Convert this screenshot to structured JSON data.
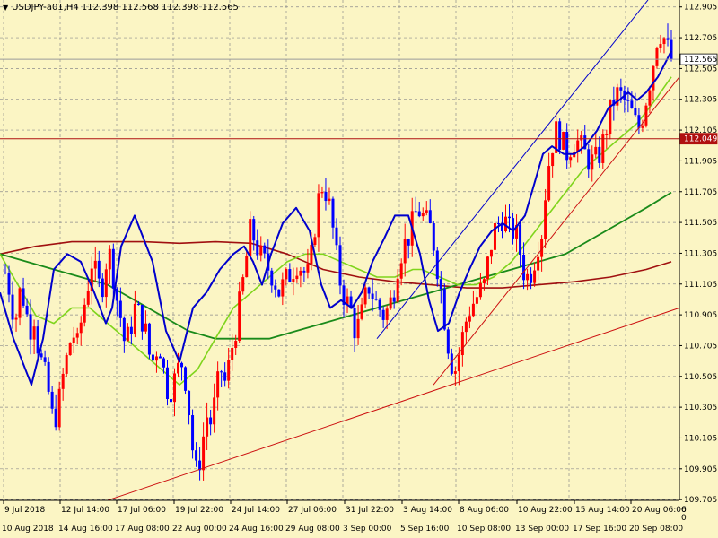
{
  "header": {
    "symbol": "USDJPY-a01,H4",
    "open": "112.398",
    "high": "112.568",
    "low": "112.398",
    "close": "112.565"
  },
  "colors": {
    "background": "#fbf5c4",
    "grid": "#8c8c8c",
    "bull": "#ff0000",
    "bear": "#0000ff",
    "ma_fast": "#0000cc",
    "ma_mid": "#7fd41c",
    "ma_slow": "#1a8a1a",
    "ma_long": "#a01010",
    "trend_blue": "#0000cc",
    "trend_red": "#cc1010"
  },
  "chart_data": {
    "type": "candlestick",
    "ylim": [
      109.7,
      112.95
    ],
    "y_ticks": [
      "112.905",
      "112.705",
      "112.505",
      "112.305",
      "112.105",
      "111.905",
      "111.705",
      "111.505",
      "111.305",
      "111.105",
      "110.905",
      "110.705",
      "110.505",
      "110.305",
      "110.105",
      "109.905",
      "109.705"
    ],
    "price_tags": [
      {
        "name": "current",
        "label": "112.565",
        "value": 112.565
      },
      {
        "name": "level",
        "label": "112.049",
        "value": 112.049
      }
    ],
    "x_ticks_top": [
      "9 Jul 2018",
      "12 Jul 14:00",
      "17 Jul 06:00",
      "19 Jul 22:00",
      "24 Jul 14:00",
      "27 Jul 06:00",
      "31 Jul 22:00",
      "3 Aug 14:00",
      "8 Aug 06:00",
      "10 Aug 22:00",
      "15 Aug 14:00",
      "20 Aug 06:00"
    ],
    "x_ticks_bottom": [
      "10 Aug 2018",
      "14 Aug 16:00",
      "17 Aug 08:00",
      "22 Aug 00:00",
      "24 Aug 16:00",
      "29 Aug 08:00",
      "3 Sep 00:00",
      "5 Sep 16:00",
      "10 Sep 08:00",
      "13 Sep 00:00",
      "17 Sep 16:00",
      "20 Sep 08:00"
    ],
    "x_edge_top": "6",
    "x_edge_bottom": "0",
    "price_path": [
      111.18,
      111.05,
      110.85,
      111.05,
      111.0,
      110.8,
      110.9,
      110.65,
      110.55,
      110.4,
      110.2,
      110.3,
      110.5,
      110.65,
      110.8,
      110.7,
      110.9,
      111.05,
      111.25,
      111.15,
      111.05,
      111.25,
      111.3,
      111.05,
      110.9,
      110.7,
      110.8,
      110.95,
      110.9,
      110.85,
      110.65,
      110.6,
      110.75,
      110.55,
      110.4,
      110.45,
      110.55,
      110.6,
      110.4,
      110.05,
      109.85,
      110.05,
      110.25,
      110.2,
      110.4,
      110.55,
      110.45,
      110.65,
      110.8,
      111.0,
      111.2,
      111.45,
      111.4,
      111.3,
      111.25,
      111.2,
      111.15,
      111.05,
      111.1,
      111.15,
      111.2,
      111.25,
      111.2,
      111.15,
      111.3,
      111.6,
      111.75,
      111.7,
      111.55,
      111.3,
      111.1,
      111.0,
      110.95,
      110.8,
      110.85,
      111.0,
      111.1,
      111.0,
      110.95,
      110.9,
      110.95,
      111.05,
      111.25,
      111.35,
      111.4,
      111.5,
      111.6,
      111.55,
      111.5,
      111.45,
      111.25,
      111.05,
      110.8,
      110.6,
      110.55,
      110.7,
      110.85,
      110.95,
      111.0,
      111.05,
      111.1,
      111.3,
      111.45,
      111.5,
      111.55,
      111.45,
      111.45,
      111.4,
      111.2,
      111.15,
      111.2,
      111.35,
      111.45,
      111.8,
      112.0,
      112.1,
      112.05,
      111.95,
      112.0,
      112.05,
      112.0,
      111.95,
      111.9,
      111.9,
      111.95,
      112.05,
      112.2,
      112.3,
      112.35,
      112.3,
      112.25,
      112.2,
      112.1,
      112.2,
      112.35,
      112.5,
      112.7,
      112.75,
      112.65,
      112.565
    ],
    "ma_fast": [
      [
        0,
        111.05
      ],
      [
        15,
        110.75
      ],
      [
        35,
        110.45
      ],
      [
        48,
        110.75
      ],
      [
        60,
        111.2
      ],
      [
        75,
        111.3
      ],
      [
        90,
        111.25
      ],
      [
        105,
        111.05
      ],
      [
        118,
        110.85
      ],
      [
        125,
        110.95
      ],
      [
        135,
        111.35
      ],
      [
        150,
        111.55
      ],
      [
        170,
        111.25
      ],
      [
        185,
        110.8
      ],
      [
        200,
        110.6
      ],
      [
        215,
        110.95
      ],
      [
        230,
        111.05
      ],
      [
        245,
        111.2
      ],
      [
        260,
        111.3
      ],
      [
        272,
        111.35
      ],
      [
        282,
        111.25
      ],
      [
        292,
        111.1
      ],
      [
        302,
        111.3
      ],
      [
        315,
        111.5
      ],
      [
        330,
        111.6
      ],
      [
        345,
        111.45
      ],
      [
        358,
        111.1
      ],
      [
        368,
        110.95
      ],
      [
        380,
        111.0
      ],
      [
        392,
        110.95
      ],
      [
        403,
        111.05
      ],
      [
        415,
        111.25
      ],
      [
        428,
        111.4
      ],
      [
        440,
        111.55
      ],
      [
        455,
        111.55
      ],
      [
        468,
        111.3
      ],
      [
        478,
        111.0
      ],
      [
        488,
        110.8
      ],
      [
        500,
        110.85
      ],
      [
        512,
        111.05
      ],
      [
        523,
        111.2
      ],
      [
        535,
        111.35
      ],
      [
        548,
        111.45
      ],
      [
        560,
        111.5
      ],
      [
        572,
        111.45
      ],
      [
        585,
        111.55
      ],
      [
        595,
        111.75
      ],
      [
        605,
        111.95
      ],
      [
        615,
        112.0
      ],
      [
        628,
        111.95
      ],
      [
        640,
        111.95
      ],
      [
        652,
        112.0
      ],
      [
        665,
        112.1
      ],
      [
        678,
        112.25
      ],
      [
        690,
        112.3
      ],
      [
        700,
        112.35
      ],
      [
        710,
        112.3
      ],
      [
        720,
        112.35
      ],
      [
        733,
        112.45
      ],
      [
        742,
        112.55
      ],
      [
        748,
        112.62
      ]
    ],
    "ma_mid": [
      [
        0,
        111.3
      ],
      [
        20,
        111.1
      ],
      [
        40,
        110.9
      ],
      [
        60,
        110.85
      ],
      [
        80,
        110.95
      ],
      [
        100,
        110.95
      ],
      [
        120,
        110.85
      ],
      [
        140,
        110.75
      ],
      [
        160,
        110.65
      ],
      [
        180,
        110.55
      ],
      [
        200,
        110.45
      ],
      [
        220,
        110.55
      ],
      [
        240,
        110.75
      ],
      [
        260,
        110.95
      ],
      [
        280,
        111.05
      ],
      [
        300,
        111.15
      ],
      [
        320,
        111.25
      ],
      [
        340,
        111.3
      ],
      [
        360,
        111.3
      ],
      [
        380,
        111.25
      ],
      [
        400,
        111.2
      ],
      [
        420,
        111.15
      ],
      [
        440,
        111.15
      ],
      [
        460,
        111.2
      ],
      [
        470,
        111.2
      ],
      [
        490,
        111.15
      ],
      [
        510,
        111.1
      ],
      [
        530,
        111.1
      ],
      [
        550,
        111.15
      ],
      [
        570,
        111.25
      ],
      [
        590,
        111.4
      ],
      [
        610,
        111.55
      ],
      [
        630,
        111.7
      ],
      [
        650,
        111.85
      ],
      [
        670,
        111.95
      ],
      [
        690,
        112.05
      ],
      [
        710,
        112.15
      ],
      [
        730,
        112.3
      ],
      [
        748,
        112.45
      ]
    ],
    "ma_slow": [
      [
        0,
        111.3
      ],
      [
        30,
        111.25
      ],
      [
        60,
        111.2
      ],
      [
        90,
        111.15
      ],
      [
        120,
        111.1
      ],
      [
        150,
        111.0
      ],
      [
        180,
        110.9
      ],
      [
        210,
        110.8
      ],
      [
        240,
        110.75
      ],
      [
        270,
        110.75
      ],
      [
        300,
        110.75
      ],
      [
        330,
        110.8
      ],
      [
        360,
        110.85
      ],
      [
        390,
        110.9
      ],
      [
        420,
        110.95
      ],
      [
        450,
        111.0
      ],
      [
        480,
        111.05
      ],
      [
        510,
        111.1
      ],
      [
        540,
        111.15
      ],
      [
        570,
        111.2
      ],
      [
        600,
        111.25
      ],
      [
        630,
        111.3
      ],
      [
        660,
        111.4
      ],
      [
        690,
        111.5
      ],
      [
        720,
        111.6
      ],
      [
        748,
        111.7
      ]
    ],
    "ma_long": [
      [
        0,
        111.3
      ],
      [
        40,
        111.35
      ],
      [
        80,
        111.38
      ],
      [
        120,
        111.38
      ],
      [
        160,
        111.38
      ],
      [
        200,
        111.37
      ],
      [
        240,
        111.38
      ],
      [
        280,
        111.37
      ],
      [
        320,
        111.3
      ],
      [
        360,
        111.2
      ],
      [
        400,
        111.15
      ],
      [
        440,
        111.12
      ],
      [
        480,
        111.1
      ],
      [
        520,
        111.08
      ],
      [
        560,
        111.08
      ],
      [
        600,
        111.1
      ],
      [
        640,
        111.12
      ],
      [
        680,
        111.15
      ],
      [
        720,
        111.2
      ],
      [
        748,
        111.25
      ]
    ],
    "trendlines": [
      {
        "name": "upper-channel-line",
        "color": "blue",
        "from": [
          420,
          110.75
        ],
        "to": [
          722,
          112.95
        ]
      },
      {
        "name": "rising-support-line",
        "color": "red",
        "from": [
          483,
          110.45
        ],
        "to": [
          757,
          112.45
        ]
      },
      {
        "name": "long-support-line",
        "color": "red",
        "from": [
          120,
          109.7
        ],
        "to": [
          757,
          110.95
        ]
      }
    ],
    "hlines": [
      {
        "name": "current-price-line",
        "value": 112.565,
        "color": "grey"
      },
      {
        "name": "level-line",
        "value": 112.049,
        "color": "red"
      }
    ]
  }
}
